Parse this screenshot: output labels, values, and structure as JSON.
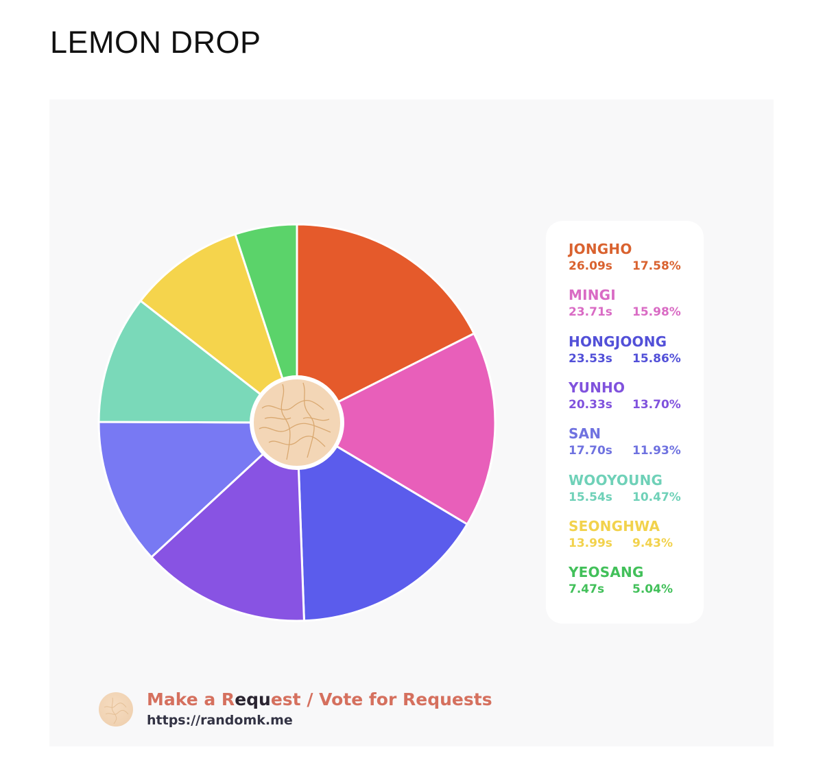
{
  "page": {
    "title": "LEMON DROP"
  },
  "chart_data": {
    "type": "pie",
    "title": "",
    "categories": [
      "JONGHO",
      "MINGI",
      "HONGJOONG",
      "YUNHO",
      "SAN",
      "WOOYOUNG",
      "SEONGHWA",
      "YEOSANG"
    ],
    "values": [
      17.58,
      15.98,
      15.86,
      13.7,
      11.93,
      10.47,
      9.43,
      5.04
    ],
    "times": [
      "26.09s",
      "23.71s",
      "23.53s",
      "20.33s",
      "17.70s",
      "15.54s",
      "13.99s",
      "7.47s"
    ],
    "percent_labels": [
      "17.58%",
      "15.98%",
      "15.86%",
      "13.70%",
      "11.93%",
      "10.47%",
      "9.43%",
      "5.04%"
    ],
    "colors": [
      "#e55a2b",
      "#e85fba",
      "#5b5cec",
      "#8853e3",
      "#7879f3",
      "#7ad9b9",
      "#f5d44c",
      "#5bd36a"
    ],
    "legend_text_colors": [
      "#d9622f",
      "#d96bc4",
      "#5250d8",
      "#8052dd",
      "#6f72e0",
      "#6fd1b8",
      "#f2d24c",
      "#42c05a"
    ],
    "legend_position": "right",
    "start": "top, clockwise"
  },
  "center_badge": {
    "color": "#f3d6b6"
  },
  "footer": {
    "line1_part1": "Make a R",
    "line1_part2": "equ",
    "line1_part3": "est / Vote for Requests",
    "line2": "https://randomk.me"
  }
}
